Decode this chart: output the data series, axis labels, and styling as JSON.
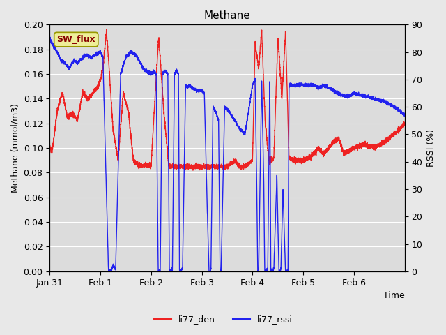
{
  "title": "Methane",
  "xlabel": "Time",
  "ylabel_left": "Methane (mmol/m3)",
  "ylabel_right": "RSSI (%)",
  "ylim_left": [
    0.0,
    0.2
  ],
  "ylim_right": [
    0,
    90
  ],
  "yticks_left": [
    0.0,
    0.02,
    0.04,
    0.06,
    0.08,
    0.1,
    0.12,
    0.14,
    0.16,
    0.18,
    0.2
  ],
  "yticks_right": [
    0,
    10,
    20,
    30,
    40,
    50,
    60,
    70,
    80,
    90
  ],
  "xtick_labels": [
    "Jan 31",
    "Feb 1",
    "Feb 2",
    "Feb 3",
    "Feb 4",
    "Feb 5",
    "Feb 6"
  ],
  "xtick_positions": [
    0,
    1,
    2,
    3,
    4,
    5,
    6
  ],
  "xlim": [
    0,
    7
  ],
  "color_red": "#EE2222",
  "color_blue": "#2222EE",
  "legend_label_red": "li77_den",
  "legend_label_blue": "li77_rssi",
  "sw_flux_label": "SW_flux",
  "sw_flux_bg": "#EEEE99",
  "sw_flux_border": "#999900",
  "sw_flux_text_color": "#880000",
  "bg_color": "#E8E8E8",
  "plot_bg_color": "#DCDCDC",
  "grid_color": "#FFFFFF",
  "title_fontsize": 11,
  "axis_label_fontsize": 9,
  "tick_fontsize": 9,
  "legend_fontsize": 9,
  "linewidth": 1.0
}
